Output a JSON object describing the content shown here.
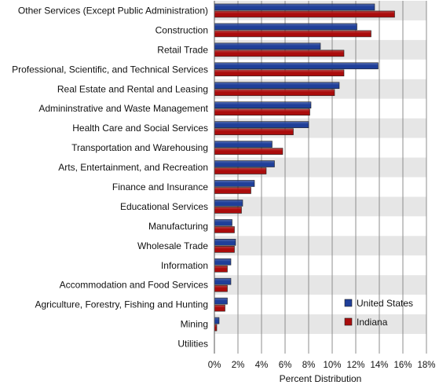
{
  "chart_data": {
    "type": "bar",
    "orientation": "horizontal",
    "title": "",
    "xlabel": "Percent Distribution",
    "ylabel": "",
    "xlim": [
      0,
      18
    ],
    "x_ticks": [
      "0%",
      "2%",
      "4%",
      "6%",
      "8%",
      "10%",
      "12%",
      "14%",
      "16%",
      "18%"
    ],
    "grid": true,
    "legend_position": "bottom-right",
    "categories": [
      "Other Services (Except Public Administration)",
      "Construction",
      "Retail Trade",
      "Professional, Scientific, and Technical Services",
      "Real Estate and Rental and Leasing",
      "Admininstrative and Waste Management",
      "Health Care and Social Services",
      "Transportation and Warehousing",
      "Arts, Entertainment, and Recreation",
      "Finance and Insurance",
      "Educational Services",
      "Manufacturing",
      "Wholesale Trade",
      "Information",
      "Accommodation and Food Services",
      "Agriculture, Forestry, Fishing and Hunting",
      "Mining",
      "Utilities"
    ],
    "series": [
      {
        "name": "United States",
        "color": "#1f3f99",
        "values": [
          13.6,
          12.1,
          9.0,
          13.9,
          10.6,
          8.2,
          8.0,
          4.9,
          5.1,
          3.4,
          2.4,
          1.5,
          1.8,
          1.4,
          1.4,
          1.1,
          0.4,
          0.0
        ]
      },
      {
        "name": "Indiana",
        "color": "#aa0c0c",
        "values": [
          15.3,
          13.3,
          11.0,
          11.0,
          10.2,
          8.1,
          6.7,
          5.8,
          4.4,
          3.1,
          2.3,
          1.7,
          1.7,
          1.1,
          1.1,
          0.9,
          0.2,
          0.0
        ]
      }
    ]
  }
}
